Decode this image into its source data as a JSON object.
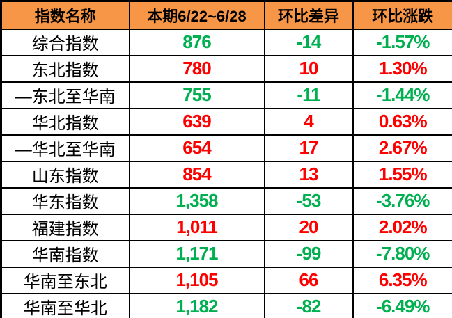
{
  "table": {
    "headers": [
      "指数名称",
      "本期6/22~6/28",
      "环比差异",
      "环比涨跌"
    ],
    "rows": [
      {
        "name": "综合指数",
        "current": "876",
        "diff": "-14",
        "change": "-1.57%",
        "trend": "down"
      },
      {
        "name": "东北指数",
        "current": "780",
        "diff": "10",
        "change": "1.30%",
        "trend": "up"
      },
      {
        "name": "—东北至华南",
        "current": "755",
        "diff": "-11",
        "change": "-1.44%",
        "trend": "down"
      },
      {
        "name": "华北指数",
        "current": "639",
        "diff": "4",
        "change": "0.63%",
        "trend": "up"
      },
      {
        "name": "—华北至华南",
        "current": "654",
        "diff": "17",
        "change": "2.67%",
        "trend": "up"
      },
      {
        "name": "山东指数",
        "current": "854",
        "diff": "13",
        "change": "1.55%",
        "trend": "up"
      },
      {
        "name": "华东指数",
        "current": "1,358",
        "diff": "-53",
        "change": "-3.76%",
        "trend": "down"
      },
      {
        "name": "福建指数",
        "current": "1,011",
        "diff": "20",
        "change": "2.02%",
        "trend": "up"
      },
      {
        "name": "华南指数",
        "current": "1,171",
        "diff": "-99",
        "change": "-7.80%",
        "trend": "down"
      },
      {
        "name": "华南至东北",
        "current": "1,105",
        "diff": "66",
        "change": "6.35%",
        "trend": "up"
      },
      {
        "name": "华南至华北",
        "current": "1,182",
        "diff": "-82",
        "change": "-6.49%",
        "trend": "down"
      }
    ]
  },
  "colors": {
    "header_bg": "#F79646",
    "rise_red": "#FF0000",
    "fall_green": "#00B050",
    "border": "#000000",
    "header_text": "#000000",
    "name_text": "#000000",
    "background": "#FFFFFF"
  },
  "chart_data": {
    "type": "table",
    "columns": [
      "指数名称",
      "本期6/22~6/28",
      "环比差异",
      "环比涨跌"
    ],
    "rows": [
      [
        "综合指数",
        876,
        -14,
        "-1.57%"
      ],
      [
        "东北指数",
        780,
        10,
        "1.30%"
      ],
      [
        "—东北至华南",
        755,
        -11,
        "-1.44%"
      ],
      [
        "华北指数",
        639,
        4,
        "0.63%"
      ],
      [
        "—华北至华南",
        654,
        17,
        "2.67%"
      ],
      [
        "山东指数",
        854,
        13,
        "1.55%"
      ],
      [
        "华东指数",
        1358,
        -53,
        "-3.76%"
      ],
      [
        "福建指数",
        1011,
        20,
        "2.02%"
      ],
      [
        "华南指数",
        1171,
        -99,
        "-7.80%"
      ],
      [
        "华南至东北",
        1105,
        66,
        "6.35%"
      ],
      [
        "华南至华北",
        1182,
        -82,
        "-6.49%"
      ]
    ],
    "notes": "Positive changes shown in red, negative changes shown in green; header row orange"
  }
}
